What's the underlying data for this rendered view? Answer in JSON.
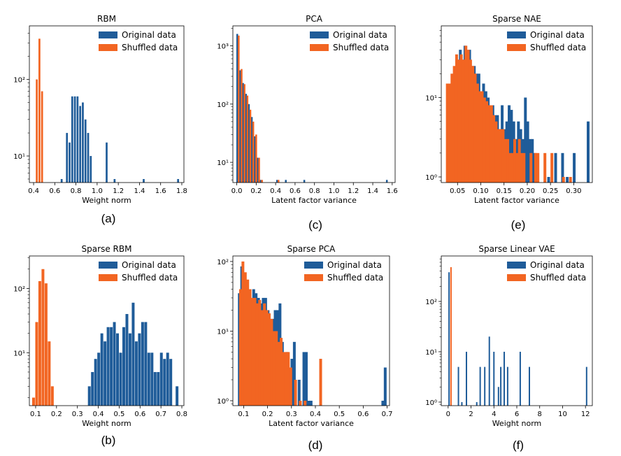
{
  "colors": {
    "original": "#1f5c99",
    "shuffled": "#f26522",
    "axis": "#000000"
  },
  "chart_data": [
    {
      "type": "bar",
      "panel": "(a)",
      "title": "RBM",
      "xlabel": "Weight norm",
      "ylabel": "",
      "yscale": "log",
      "xlim": [
        0.36,
        1.82
      ],
      "ylim": [
        4.5,
        500
      ],
      "xticks": [
        0.4,
        0.6,
        0.8,
        1.0,
        1.2,
        1.4,
        1.6,
        1.8
      ],
      "xticklabels": [
        "0.4",
        "0.6",
        "0.8",
        "1.0",
        "1.2",
        "1.4",
        "1.6",
        "1.8"
      ],
      "yticks": [
        10,
        100
      ],
      "yticklabels": [
        "10¹",
        "10²"
      ],
      "legend": [
        "Original data",
        "Shuffled data"
      ],
      "legend_position": "top-right",
      "series": [
        {
          "name": "Original data",
          "x": [
            0.665,
            0.715,
            0.74,
            0.765,
            0.79,
            0.815,
            0.84,
            0.865,
            0.89,
            0.915,
            0.94,
            1.09,
            1.165,
            1.44,
            1.765
          ],
          "values": [
            5,
            20,
            15,
            60,
            60,
            60,
            45,
            50,
            30,
            20,
            10,
            15,
            5,
            5,
            5
          ]
        },
        {
          "name": "Shuffled data",
          "x": [
            0.43,
            0.455,
            0.48
          ],
          "values": [
            100,
            340,
            70
          ]
        }
      ]
    },
    {
      "type": "bar",
      "panel": "(c)",
      "title": "PCA",
      "xlabel": "Latent factor variance",
      "ylabel": "",
      "yscale": "log",
      "xlim": [
        -0.04,
        1.63
      ],
      "ylim": [
        4.5,
        2200
      ],
      "xticks": [
        0.0,
        0.2,
        0.4,
        0.6,
        0.8,
        1.0,
        1.2,
        1.4,
        1.6
      ],
      "xticklabels": [
        "0.0",
        "0.2",
        "0.4",
        "0.6",
        "0.8",
        "1.0",
        "1.2",
        "1.4",
        "1.6"
      ],
      "yticks": [
        10,
        100,
        1000
      ],
      "yticklabels": [
        "10¹",
        "10²",
        "10³"
      ],
      "legend": [
        "Original data",
        "Shuffled data"
      ],
      "legend_position": "top-right",
      "series": [
        {
          "name": "Original data",
          "x": [
            0.005,
            0.035,
            0.065,
            0.095,
            0.125,
            0.155,
            0.185,
            0.215,
            0.245,
            0.415,
            0.505,
            0.695,
            1.545
          ],
          "values": [
            1600,
            380,
            230,
            150,
            100,
            60,
            28,
            12,
            5,
            5,
            5,
            5,
            5
          ]
        },
        {
          "name": "Shuffled data",
          "x": [
            0.02,
            0.05,
            0.08,
            0.11,
            0.14,
            0.17,
            0.2,
            0.23,
            0.26,
            0.43
          ],
          "values": [
            1500,
            400,
            220,
            140,
            80,
            50,
            30,
            12,
            5,
            5
          ]
        }
      ]
    },
    {
      "type": "bar",
      "panel": "(e)",
      "title": "Sparse NAE",
      "xlabel": "Latent factor variance",
      "ylabel": "",
      "yscale": "log",
      "xlim": [
        0.015,
        0.34
      ],
      "ylim": [
        0.85,
        80
      ],
      "xticks": [
        0.05,
        0.1,
        0.15,
        0.2,
        0.25,
        0.3
      ],
      "xticklabels": [
        "0.05",
        "0.10",
        "0.15",
        "0.20",
        "0.25",
        "0.30"
      ],
      "yticks": [
        1,
        10
      ],
      "yticklabels": [
        "10⁰",
        "10¹"
      ],
      "legend": [
        "Original data",
        "Shuffled data"
      ],
      "legend_position": "top-right",
      "series": [
        {
          "name": "Original data",
          "x": [
            0.031,
            0.036,
            0.041,
            0.046,
            0.051,
            0.056,
            0.061,
            0.066,
            0.071,
            0.076,
            0.081,
            0.086,
            0.091,
            0.096,
            0.101,
            0.106,
            0.111,
            0.116,
            0.121,
            0.126,
            0.131,
            0.136,
            0.141,
            0.146,
            0.151,
            0.156,
            0.161,
            0.166,
            0.171,
            0.176,
            0.181,
            0.186,
            0.191,
            0.196,
            0.201,
            0.206,
            0.211,
            0.216,
            0.246,
            0.261,
            0.276,
            0.286,
            0.301,
            0.331
          ],
          "values": [
            3,
            10,
            18,
            20,
            30,
            40,
            30,
            45,
            25,
            40,
            25,
            25,
            20,
            20,
            12,
            15,
            12,
            10,
            5,
            8,
            6,
            6,
            4,
            8,
            4,
            5,
            8,
            7,
            5,
            3,
            5,
            4,
            3,
            10,
            5,
            3,
            3,
            2,
            1,
            2,
            2,
            1,
            2,
            5
          ]
        },
        {
          "name": "Shuffled data",
          "x": [
            0.028,
            0.033,
            0.038,
            0.043,
            0.048,
            0.053,
            0.058,
            0.063,
            0.068,
            0.073,
            0.078,
            0.083,
            0.088,
            0.093,
            0.098,
            0.103,
            0.108,
            0.113,
            0.118,
            0.123,
            0.128,
            0.133,
            0.138,
            0.143,
            0.148,
            0.153,
            0.158,
            0.163,
            0.168,
            0.173,
            0.178,
            0.183,
            0.188,
            0.193,
            0.208,
            0.218,
            0.223,
            0.238,
            0.253,
            0.278,
            0.293
          ],
          "values": [
            15,
            15,
            20,
            25,
            35,
            30,
            35,
            30,
            45,
            40,
            30,
            25,
            20,
            15,
            12,
            12,
            10,
            9,
            8,
            8,
            6,
            5,
            4,
            4,
            4,
            3,
            3,
            2,
            2,
            3,
            2,
            3,
            2,
            2,
            2,
            2,
            2,
            2,
            2,
            1,
            1
          ]
        }
      ]
    },
    {
      "type": "bar",
      "panel": "(b)",
      "title": "Sparse RBM",
      "xlabel": "Weight norm",
      "ylabel": "",
      "yscale": "log",
      "xlim": [
        0.07,
        0.81
      ],
      "ylim": [
        1.5,
        320
      ],
      "xticks": [
        0.1,
        0.2,
        0.3,
        0.4,
        0.5,
        0.6,
        0.7,
        0.8
      ],
      "xticklabels": [
        "0.1",
        "0.2",
        "0.3",
        "0.4",
        "0.5",
        "0.6",
        "0.7",
        "0.8"
      ],
      "yticks": [
        10,
        100
      ],
      "yticklabels": [
        "10¹",
        "10²"
      ],
      "legend": [
        "Original data",
        "Shuffled data"
      ],
      "legend_position": "top-right",
      "series": [
        {
          "name": "Original data",
          "x": [
            0.357,
            0.372,
            0.387,
            0.402,
            0.417,
            0.432,
            0.447,
            0.462,
            0.477,
            0.492,
            0.507,
            0.522,
            0.537,
            0.552,
            0.567,
            0.582,
            0.597,
            0.612,
            0.627,
            0.642,
            0.657,
            0.672,
            0.687,
            0.702,
            0.717,
            0.732,
            0.747,
            0.777
          ],
          "values": [
            3,
            5,
            8,
            10,
            20,
            15,
            25,
            25,
            30,
            20,
            10,
            25,
            40,
            20,
            60,
            15,
            20,
            30,
            30,
            10,
            10,
            5,
            5,
            10,
            8,
            10,
            8,
            3
          ]
        },
        {
          "name": "Shuffled data",
          "x": [
            0.09,
            0.105,
            0.12,
            0.135,
            0.15,
            0.165,
            0.18
          ],
          "values": [
            2,
            30,
            130,
            200,
            120,
            15,
            3
          ]
        }
      ]
    },
    {
      "type": "bar",
      "panel": "(d)",
      "title": "Sparse PCA",
      "xlabel": "Latent factor variance",
      "ylabel": "",
      "yscale": "log",
      "xlim": [
        0.055,
        0.71
      ],
      "ylim": [
        0.85,
        120
      ],
      "xticks": [
        0.1,
        0.2,
        0.3,
        0.4,
        0.5,
        0.6,
        0.7
      ],
      "xticklabels": [
        "0.1",
        "0.2",
        "0.3",
        "0.4",
        "0.5",
        "0.6",
        "0.7"
      ],
      "yticks": [
        1,
        10,
        100
      ],
      "yticklabels": [
        "10⁰",
        "10¹",
        "10²"
      ],
      "legend": [
        "Original data",
        "Shuffled data"
      ],
      "legend_position": "top-right",
      "series": [
        {
          "name": "Original data",
          "x": [
            0.082,
            0.092,
            0.102,
            0.112,
            0.122,
            0.132,
            0.142,
            0.152,
            0.162,
            0.172,
            0.182,
            0.192,
            0.202,
            0.212,
            0.222,
            0.232,
            0.242,
            0.252,
            0.262,
            0.282,
            0.302,
            0.312,
            0.332,
            0.352,
            0.362,
            0.372,
            0.382,
            0.682,
            0.687,
            0.692
          ],
          "values": [
            35,
            85,
            60,
            40,
            35,
            25,
            40,
            35,
            30,
            25,
            30,
            30,
            20,
            15,
            15,
            20,
            20,
            25,
            7,
            5,
            4,
            7,
            2,
            5,
            5,
            1,
            1,
            1,
            1,
            3
          ]
        },
        {
          "name": "Shuffled data",
          "x": [
            0.087,
            0.097,
            0.107,
            0.117,
            0.127,
            0.137,
            0.147,
            0.157,
            0.167,
            0.177,
            0.187,
            0.197,
            0.207,
            0.217,
            0.227,
            0.237,
            0.247,
            0.257,
            0.267,
            0.277,
            0.287,
            0.297,
            0.317,
            0.337,
            0.357,
            0.422
          ],
          "values": [
            40,
            100,
            70,
            55,
            40,
            30,
            30,
            25,
            28,
            20,
            25,
            20,
            18,
            15,
            10,
            10,
            7,
            8,
            5,
            5,
            5,
            3,
            2,
            1,
            1,
            4
          ]
        }
      ]
    },
    {
      "type": "bar",
      "panel": "(f)",
      "title": "Sparse Linear VAE",
      "xlabel": "Weight norm",
      "ylabel": "",
      "yscale": "log",
      "xlim": [
        -0.6,
        12.6
      ],
      "ylim": [
        0.85,
        800
      ],
      "xticks": [
        0,
        2,
        4,
        6,
        8,
        10,
        12
      ],
      "xticklabels": [
        "0",
        "2",
        "4",
        "6",
        "8",
        "10",
        "12"
      ],
      "yticks": [
        1,
        10,
        100
      ],
      "yticklabels": [
        "10⁰",
        "10¹",
        "10²"
      ],
      "legend": [
        "Original data",
        "Shuffled data"
      ],
      "legend_position": "top-right",
      "series": [
        {
          "name": "Original data",
          "x": [
            0.08,
            0.9,
            1.2,
            1.6,
            2.5,
            2.8,
            3.2,
            3.6,
            4.0,
            4.4,
            4.6,
            4.9,
            5.2,
            6.3,
            7.1,
            12.1
          ],
          "values": [
            380,
            5,
            1,
            10,
            1,
            5,
            5,
            20,
            10,
            2,
            5,
            10,
            5,
            10,
            5,
            5
          ]
        },
        {
          "name": "Shuffled data",
          "x": [
            0.25
          ],
          "values": [
            480
          ]
        }
      ]
    }
  ]
}
